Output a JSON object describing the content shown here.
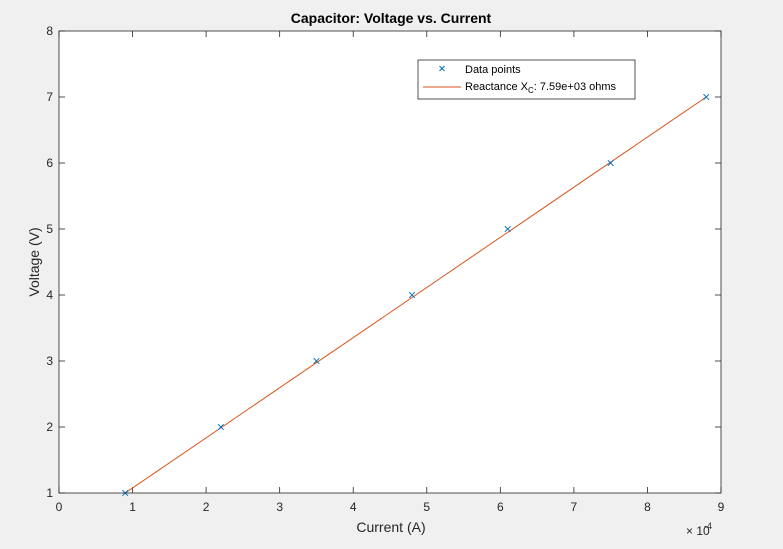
{
  "chart_data": {
    "type": "scatter",
    "title": "Capacitor: Voltage vs. Current",
    "xlabel": "Current (A)",
    "ylabel": "Voltage (V)",
    "x_exponent_label": "× 10",
    "x_exponent": "-4",
    "xlim": [
      0,
      9
    ],
    "ylim": [
      1,
      8
    ],
    "x_ticks": [
      0,
      1,
      2,
      3,
      4,
      5,
      6,
      7,
      8,
      9
    ],
    "y_ticks": [
      1,
      2,
      3,
      4,
      5,
      6,
      7,
      8
    ],
    "x_scale_factor": 0.0001,
    "grid": false,
    "box": true,
    "legend_position": "top-right",
    "series": [
      {
        "name": "Data points",
        "kind": "marker",
        "marker": "x",
        "color": "#0072BD",
        "x": [
          0.9,
          2.2,
          3.5,
          4.8,
          6.1,
          7.5,
          8.8
        ],
        "y": [
          1,
          2,
          3,
          4,
          5,
          6,
          7
        ]
      },
      {
        "name": "Reactance X",
        "name_subscript": "C",
        "name_suffix": ": 7.59e+03 ohms",
        "kind": "line",
        "color": "#D95319",
        "x": [
          0.9,
          8.8
        ],
        "y": [
          1.0,
          7.0
        ]
      }
    ]
  }
}
